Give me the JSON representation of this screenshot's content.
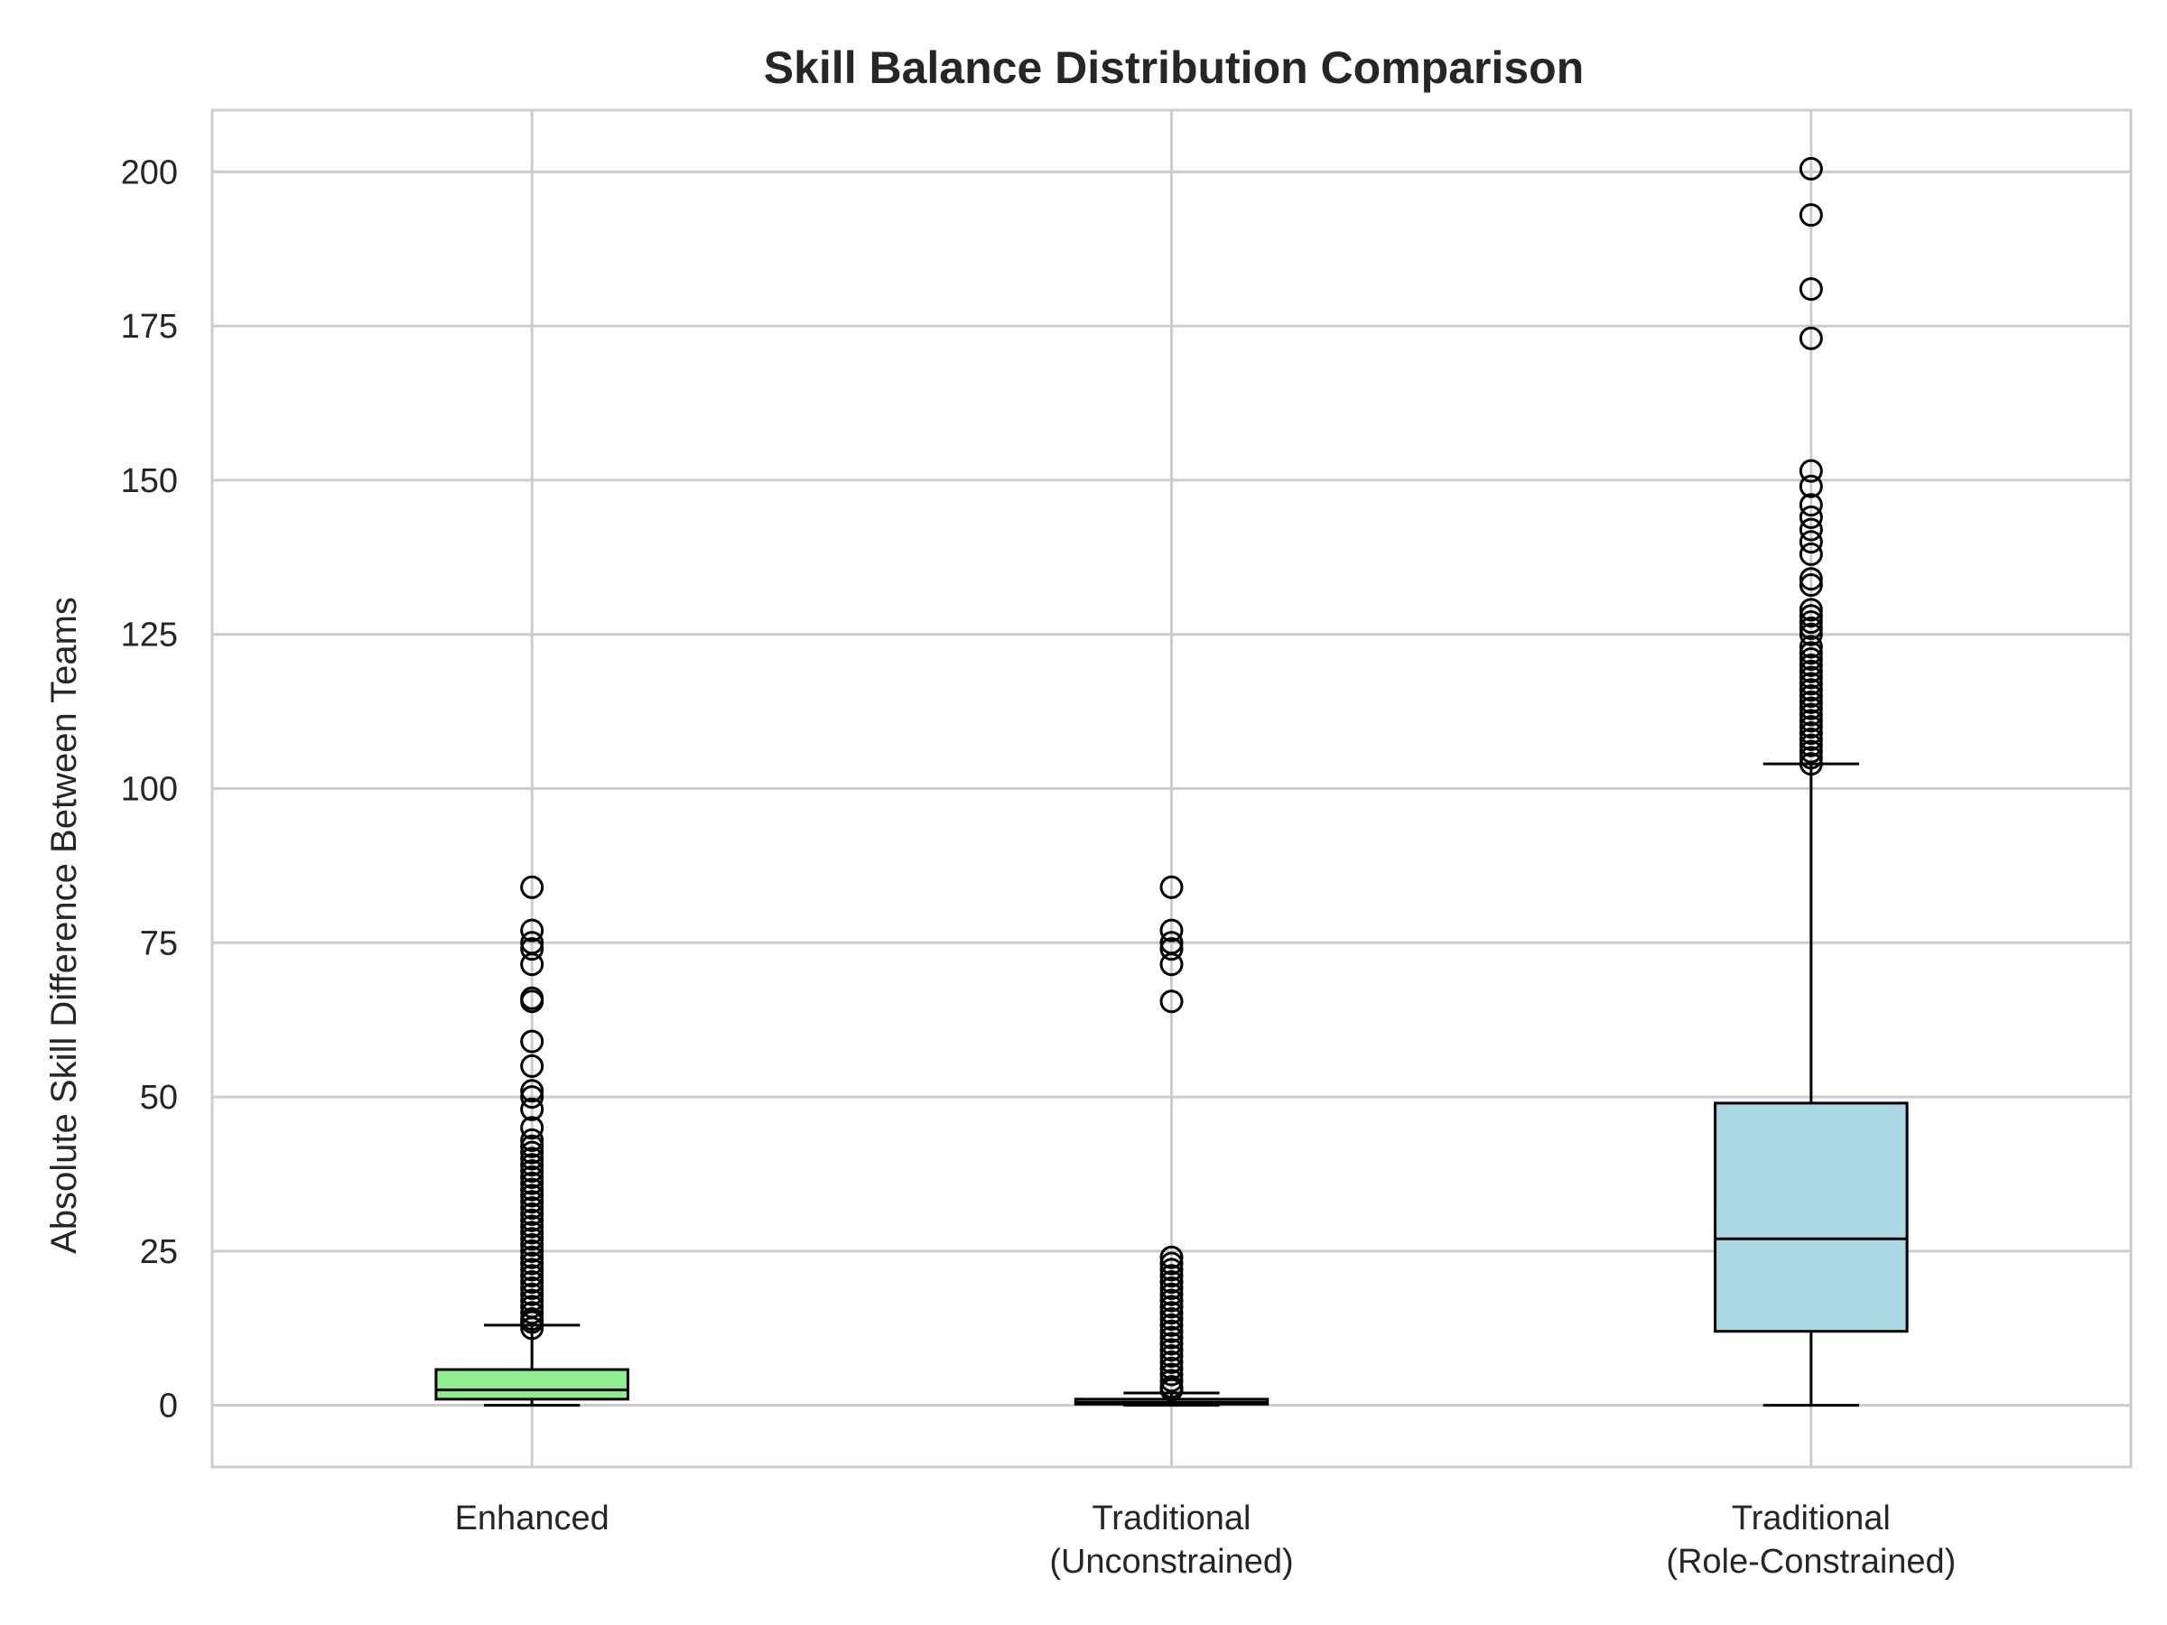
{
  "chart_data": {
    "type": "box",
    "title": "Skill Balance Distribution Comparison",
    "xlabel": "",
    "ylabel": "Absolute Skill Difference Between Teams",
    "ylim": [
      -10,
      210
    ],
    "yticks": [
      0,
      25,
      50,
      75,
      100,
      125,
      150,
      175,
      200
    ],
    "grid": true,
    "categories": [
      "Enhanced",
      "Traditional\n(Unconstrained)",
      "Traditional\n(Role-Constrained)"
    ],
    "series": [
      {
        "category": "Enhanced",
        "color": "#90ee90",
        "whisker_low": 0,
        "q1": 1,
        "median": 2.5,
        "q3": 5.8,
        "whisker_high": 13,
        "outliers": [
          12.5,
          13.5,
          14,
          15,
          16,
          17,
          18,
          19,
          20,
          21,
          22,
          23,
          24,
          25,
          26,
          27,
          28,
          29,
          30,
          31,
          32,
          33,
          34,
          35,
          36,
          37,
          38,
          39,
          40,
          41,
          42,
          43,
          45,
          48,
          50,
          51,
          55,
          59,
          65.5,
          66,
          71.5,
          74,
          75,
          77,
          84
        ]
      },
      {
        "category": "Traditional\n(Unconstrained)",
        "color": "#add8e6",
        "whisker_low": 0,
        "q1": 0.2,
        "median": 0.5,
        "q3": 1,
        "whisker_high": 2,
        "outliers": [
          2.5,
          3,
          4,
          5,
          6,
          7,
          8,
          9,
          10,
          11,
          12,
          13,
          14,
          15,
          16,
          17,
          18,
          19,
          20,
          21,
          22,
          23,
          24,
          65.5,
          71.5,
          74,
          75,
          77,
          84
        ]
      },
      {
        "category": "Traditional\n(Role-Constrained)",
        "color": "#add8e6",
        "whisker_low": 0,
        "q1": 12,
        "median": 27,
        "q3": 49,
        "whisker_high": 104,
        "outliers": [
          104,
          105,
          106,
          107,
          108,
          109,
          110,
          111,
          112,
          113,
          114,
          115,
          116,
          117,
          118,
          119,
          120,
          121,
          122,
          123,
          125,
          126,
          127,
          128,
          129,
          133,
          134,
          138,
          140,
          142,
          144,
          146,
          149,
          151.5,
          173,
          181,
          193,
          200.5
        ]
      }
    ]
  }
}
